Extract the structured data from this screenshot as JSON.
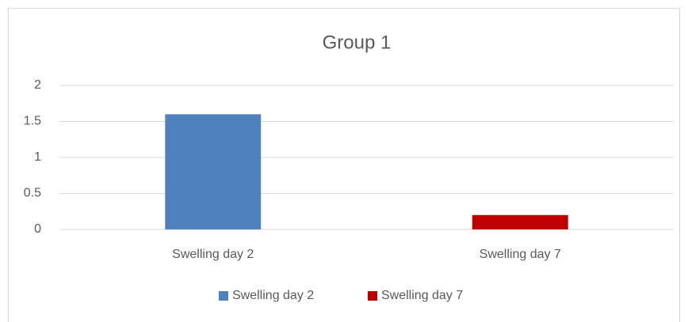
{
  "chart_data": {
    "type": "bar",
    "title": "Group 1",
    "categories": [
      "Swelling day 2",
      "Swelling day 7"
    ],
    "values": [
      1.6,
      0.2
    ],
    "colors": [
      "#4f81bd",
      "#c00000"
    ],
    "ylim": [
      0,
      2
    ],
    "yticks": [
      0,
      0.5,
      1,
      1.5,
      2
    ],
    "grid": true,
    "legend": "bottom"
  }
}
